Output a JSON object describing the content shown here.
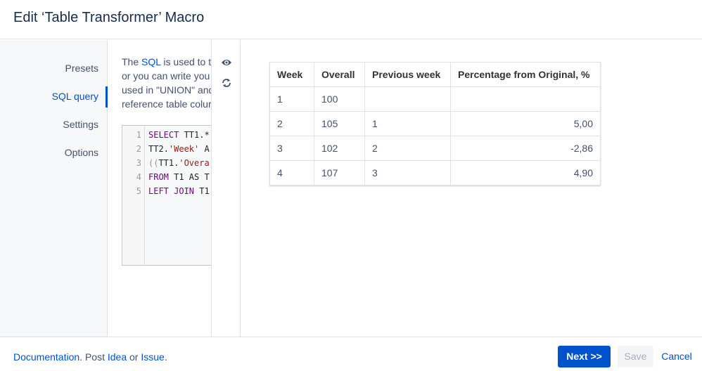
{
  "header": {
    "title": "Edit ‘Table Transformer’ Macro"
  },
  "nav": [
    "Presets",
    "SQL query",
    "Settings",
    "Options"
  ],
  "description": {
    "lead": "The ",
    "link": "SQL",
    "first_rest": " is used to tr",
    "lines": [
      "or you can write you",
      "used in \"UNION\" and",
      "reference table colur"
    ]
  },
  "code": {
    "line_numbers": [
      "1",
      "2",
      "3",
      "4",
      "5"
    ],
    "lines": [
      [
        "SELECT",
        " TT1.*"
      ],
      [
        "TT2.",
        "'Week'",
        " A"
      ],
      [
        "((",
        "TT1.",
        "'Overa"
      ],
      [
        "FROM",
        " T1 AS T"
      ],
      [
        "LEFT JOIN",
        " T1"
      ]
    ]
  },
  "table": {
    "headers": [
      "Week",
      "Overall",
      "Previous week",
      "Percentage from Original, %"
    ],
    "rows": [
      [
        "1",
        "100",
        null,
        null
      ],
      [
        "2",
        "105",
        "1",
        "5,00"
      ],
      [
        "3",
        "102",
        "2",
        "-2,86"
      ],
      [
        "4",
        "107",
        "3",
        "4,90"
      ]
    ]
  },
  "footer": {
    "doc": "Documentation",
    "sep1": ". Post ",
    "idea": "Idea",
    "sep2": " or ",
    "issue": "Issue",
    "end": ".",
    "buttons": {
      "next": "Next >>",
      "save": "Save",
      "cancel": "Cancel"
    }
  }
}
